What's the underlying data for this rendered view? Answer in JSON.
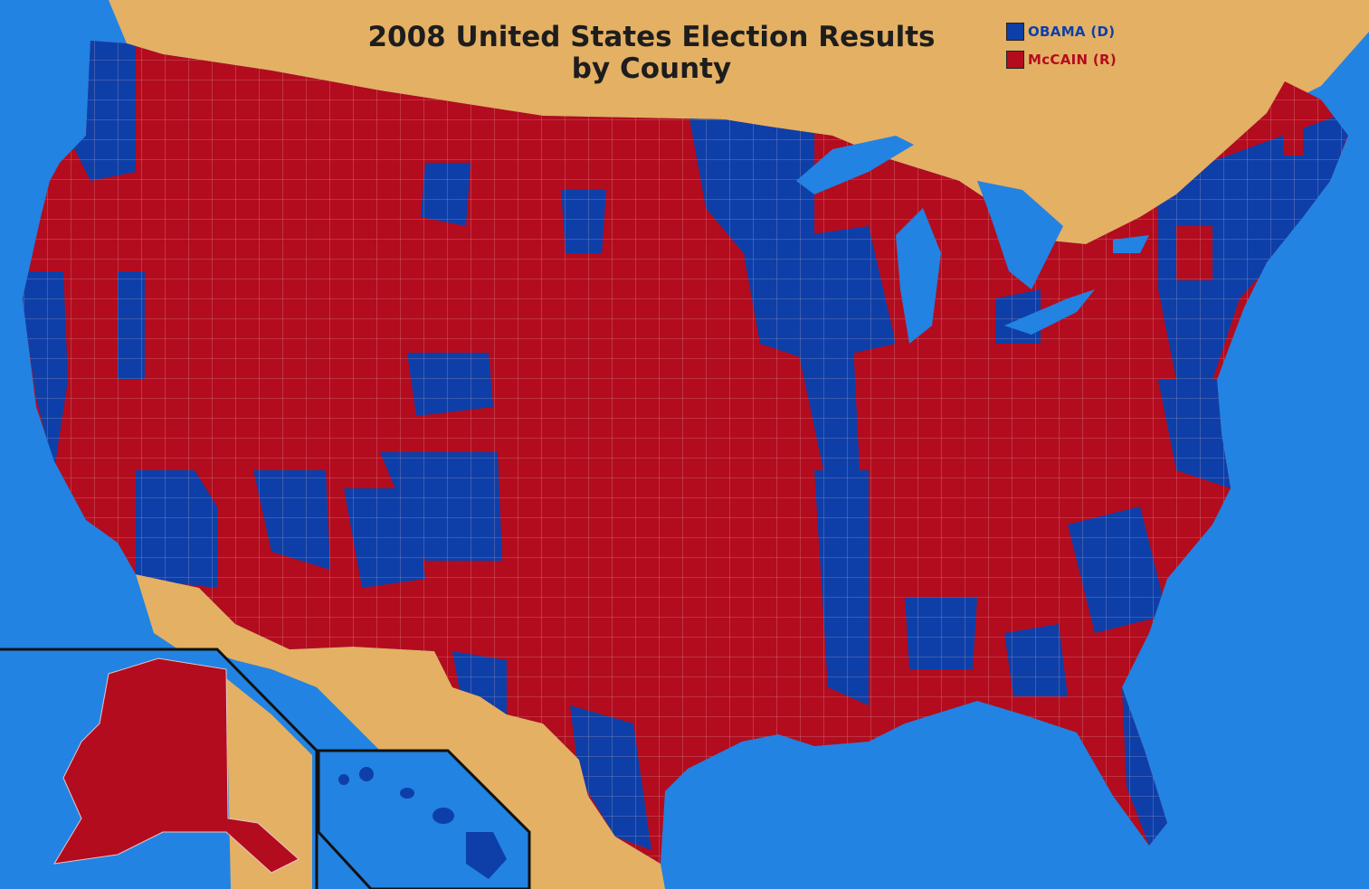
{
  "title": {
    "line1": "2008 United States Election Results",
    "line2": "by County"
  },
  "legend": [
    {
      "label": "OBAMA (D)",
      "party": "democrat",
      "color": "#0e3fa8"
    },
    {
      "label": "McCAIN (R)",
      "party": "republican",
      "color": "#b30c1e"
    }
  ],
  "colors": {
    "ocean": "#2283e2",
    "land_outside": "#e4b063",
    "democrat": "#0e3fa8",
    "republican": "#b30c1e",
    "county_border": "#e7c4c7",
    "inset_frame": "#111111"
  },
  "insets": [
    {
      "name": "Alaska"
    },
    {
      "name": "Hawaii"
    }
  ]
}
